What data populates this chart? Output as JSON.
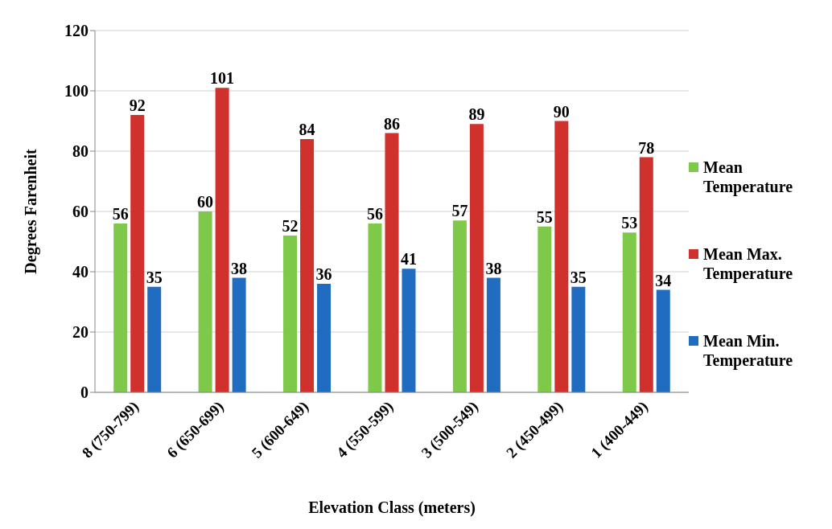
{
  "chart_data": {
    "type": "bar",
    "xlabel": "Elevation Class (meters)",
    "ylabel": "Degrees Farenheit",
    "categories": [
      "8 (750-799)",
      "6 (650-699)",
      "5 (600-649)",
      "4 (550-599)",
      "3 (500-549)",
      "2 (450-499)",
      "1 (400-449)"
    ],
    "series": [
      {
        "name": "Mean Temperature",
        "color": "#7ec84a",
        "values": [
          56,
          60,
          52,
          56,
          57,
          55,
          53
        ]
      },
      {
        "name": "Mean Max. Temperature",
        "color": "#d0312d",
        "values": [
          92,
          101,
          84,
          86,
          89,
          90,
          78
        ]
      },
      {
        "name": "Mean Min. Temperature",
        "color": "#1f6cc0",
        "values": [
          35,
          38,
          36,
          41,
          38,
          35,
          34
        ]
      }
    ],
    "ylim": [
      0,
      120
    ],
    "yticks": [
      0,
      20,
      40,
      60,
      80,
      100,
      120
    ],
    "grid": "y",
    "legend": "right",
    "data_labels": true
  }
}
